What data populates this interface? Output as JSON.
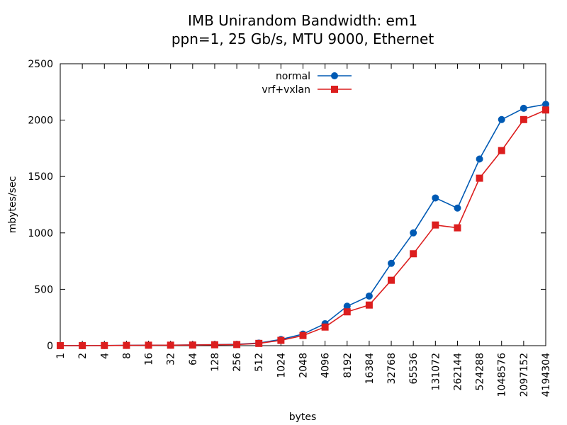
{
  "chart_data": {
    "type": "line",
    "title": "IMB Unirandom Bandwidth: em1",
    "subtitle": "ppn=1, 25 Gb/s, MTU 9000, Ethernet",
    "xlabel": "bytes",
    "ylabel": "mbytes/sec",
    "ylim": [
      0,
      2500
    ],
    "yticks": [
      0,
      500,
      1000,
      1500,
      2000,
      2500
    ],
    "grid": false,
    "legend_position": "top-center",
    "categories": [
      "1",
      "2",
      "4",
      "8",
      "16",
      "32",
      "64",
      "128",
      "256",
      "512",
      "1024",
      "2048",
      "4096",
      "8192",
      "16384",
      "32768",
      "65536",
      "131072",
      "262144",
      "524288",
      "1048576",
      "2097152",
      "4194304"
    ],
    "series": [
      {
        "name": "normal",
        "color": "#005ab4",
        "marker": "circle",
        "values": [
          0.4,
          0.8,
          1.5,
          2.7,
          4.5,
          4.6,
          6.6,
          9.5,
          12,
          23,
          55,
          103,
          195,
          350,
          440,
          730,
          1000,
          1310,
          1220,
          1655,
          2005,
          2105,
          2140
        ]
      },
      {
        "name": "vrf+vxlan",
        "color": "#dc1e1e",
        "marker": "square",
        "values": [
          0.4,
          0.7,
          1.3,
          2.4,
          4.0,
          4.2,
          5.4,
          8.0,
          10,
          20,
          47,
          90,
          165,
          300,
          360,
          580,
          815,
          1070,
          1045,
          1485,
          1730,
          2005,
          2090
        ]
      }
    ]
  }
}
